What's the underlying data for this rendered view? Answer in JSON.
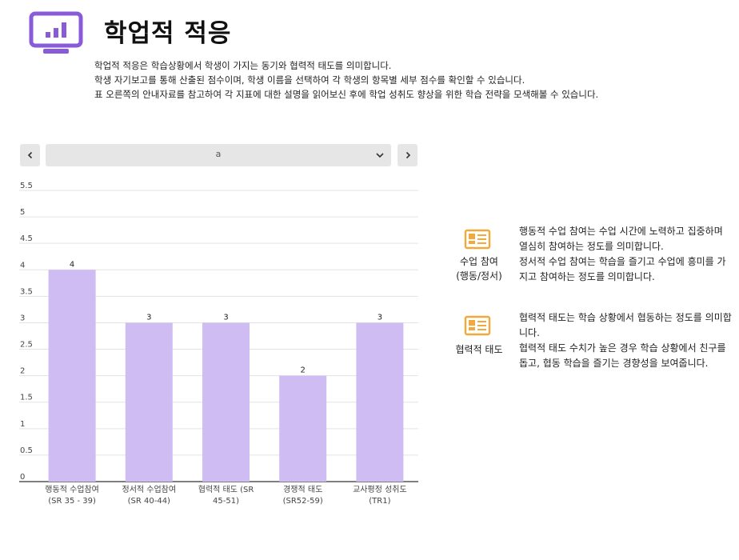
{
  "header": {
    "icon": "monitor-chart-icon",
    "title": "학업적 적응",
    "description": [
      "학업적 적응은 학습상황에서 학생이 가지는 동기와 협력적 태도를 의미합니다.",
      "학생 자기보고를 통해 산출된 점수이며, 학생 이름을 선택하여 각 학생의 항목별 세부 점수를 확인할 수 있습니다.",
      "표 오른쪽의 안내자료를 참고하여 각 지표에 대한 설명을 읽어보신 후에 학업 성취도 향상을 위한 학습 전략을 모색해볼 수 있습니다."
    ]
  },
  "selector": {
    "value": "a",
    "prev_icon": "chevron-left-icon",
    "next_icon": "chevron-right-icon",
    "dropdown_icon": "chevron-down-icon"
  },
  "chart_data": {
    "type": "bar",
    "categories": [
      [
        "행동적 수업참여",
        "(SR 35 - 39)"
      ],
      [
        "정서적 수업참여",
        "(SR 40-44)"
      ],
      [
        "협력적 태도 (SR",
        "45-51)"
      ],
      [
        "경쟁적 태도",
        "(SR52-59)"
      ],
      [
        "교사평정 성취도",
        "(TR1)"
      ]
    ],
    "values": [
      4,
      3,
      3,
      2,
      3
    ],
    "data_labels": [
      "4",
      "3",
      "3",
      "2",
      "3"
    ],
    "ylim": [
      0,
      5.5
    ],
    "yticks": [
      "0",
      "0.5",
      "1",
      "1.5",
      "2",
      "2.5",
      "3",
      "3.5",
      "4",
      "4.5",
      "5",
      "5.5"
    ],
    "bar_color": "#cebcf3",
    "grid": true
  },
  "info_panels": [
    {
      "icon": "id-card-icon",
      "label": [
        "수업 참여",
        "(행동/정서)"
      ],
      "text": [
        "행동적 수업 참여는 수업 시간에 노력하고 집중하며  열심히 참여하는 정도를 의미합니다.",
        "정서적 수업 참여는 학습을 즐기고 수업에 흥미를 가지고 참여하는 정도를 의미합니다."
      ]
    },
    {
      "icon": "id-card-icon",
      "label": [
        "협력적 태도"
      ],
      "text": [
        "협력적 태도는 학습 상황에서 협동하는 정도를 의미합니다.",
        "협력적 태도 수치가 높은 경우 학습 상황에서 친구를 돕고, 협동 학습을 즐기는 경향성을 보여줍니다."
      ]
    }
  ],
  "colors": {
    "accent": "#8a5bd8",
    "bar": "#cebcf3",
    "icon_orange": "#f2a93b"
  }
}
